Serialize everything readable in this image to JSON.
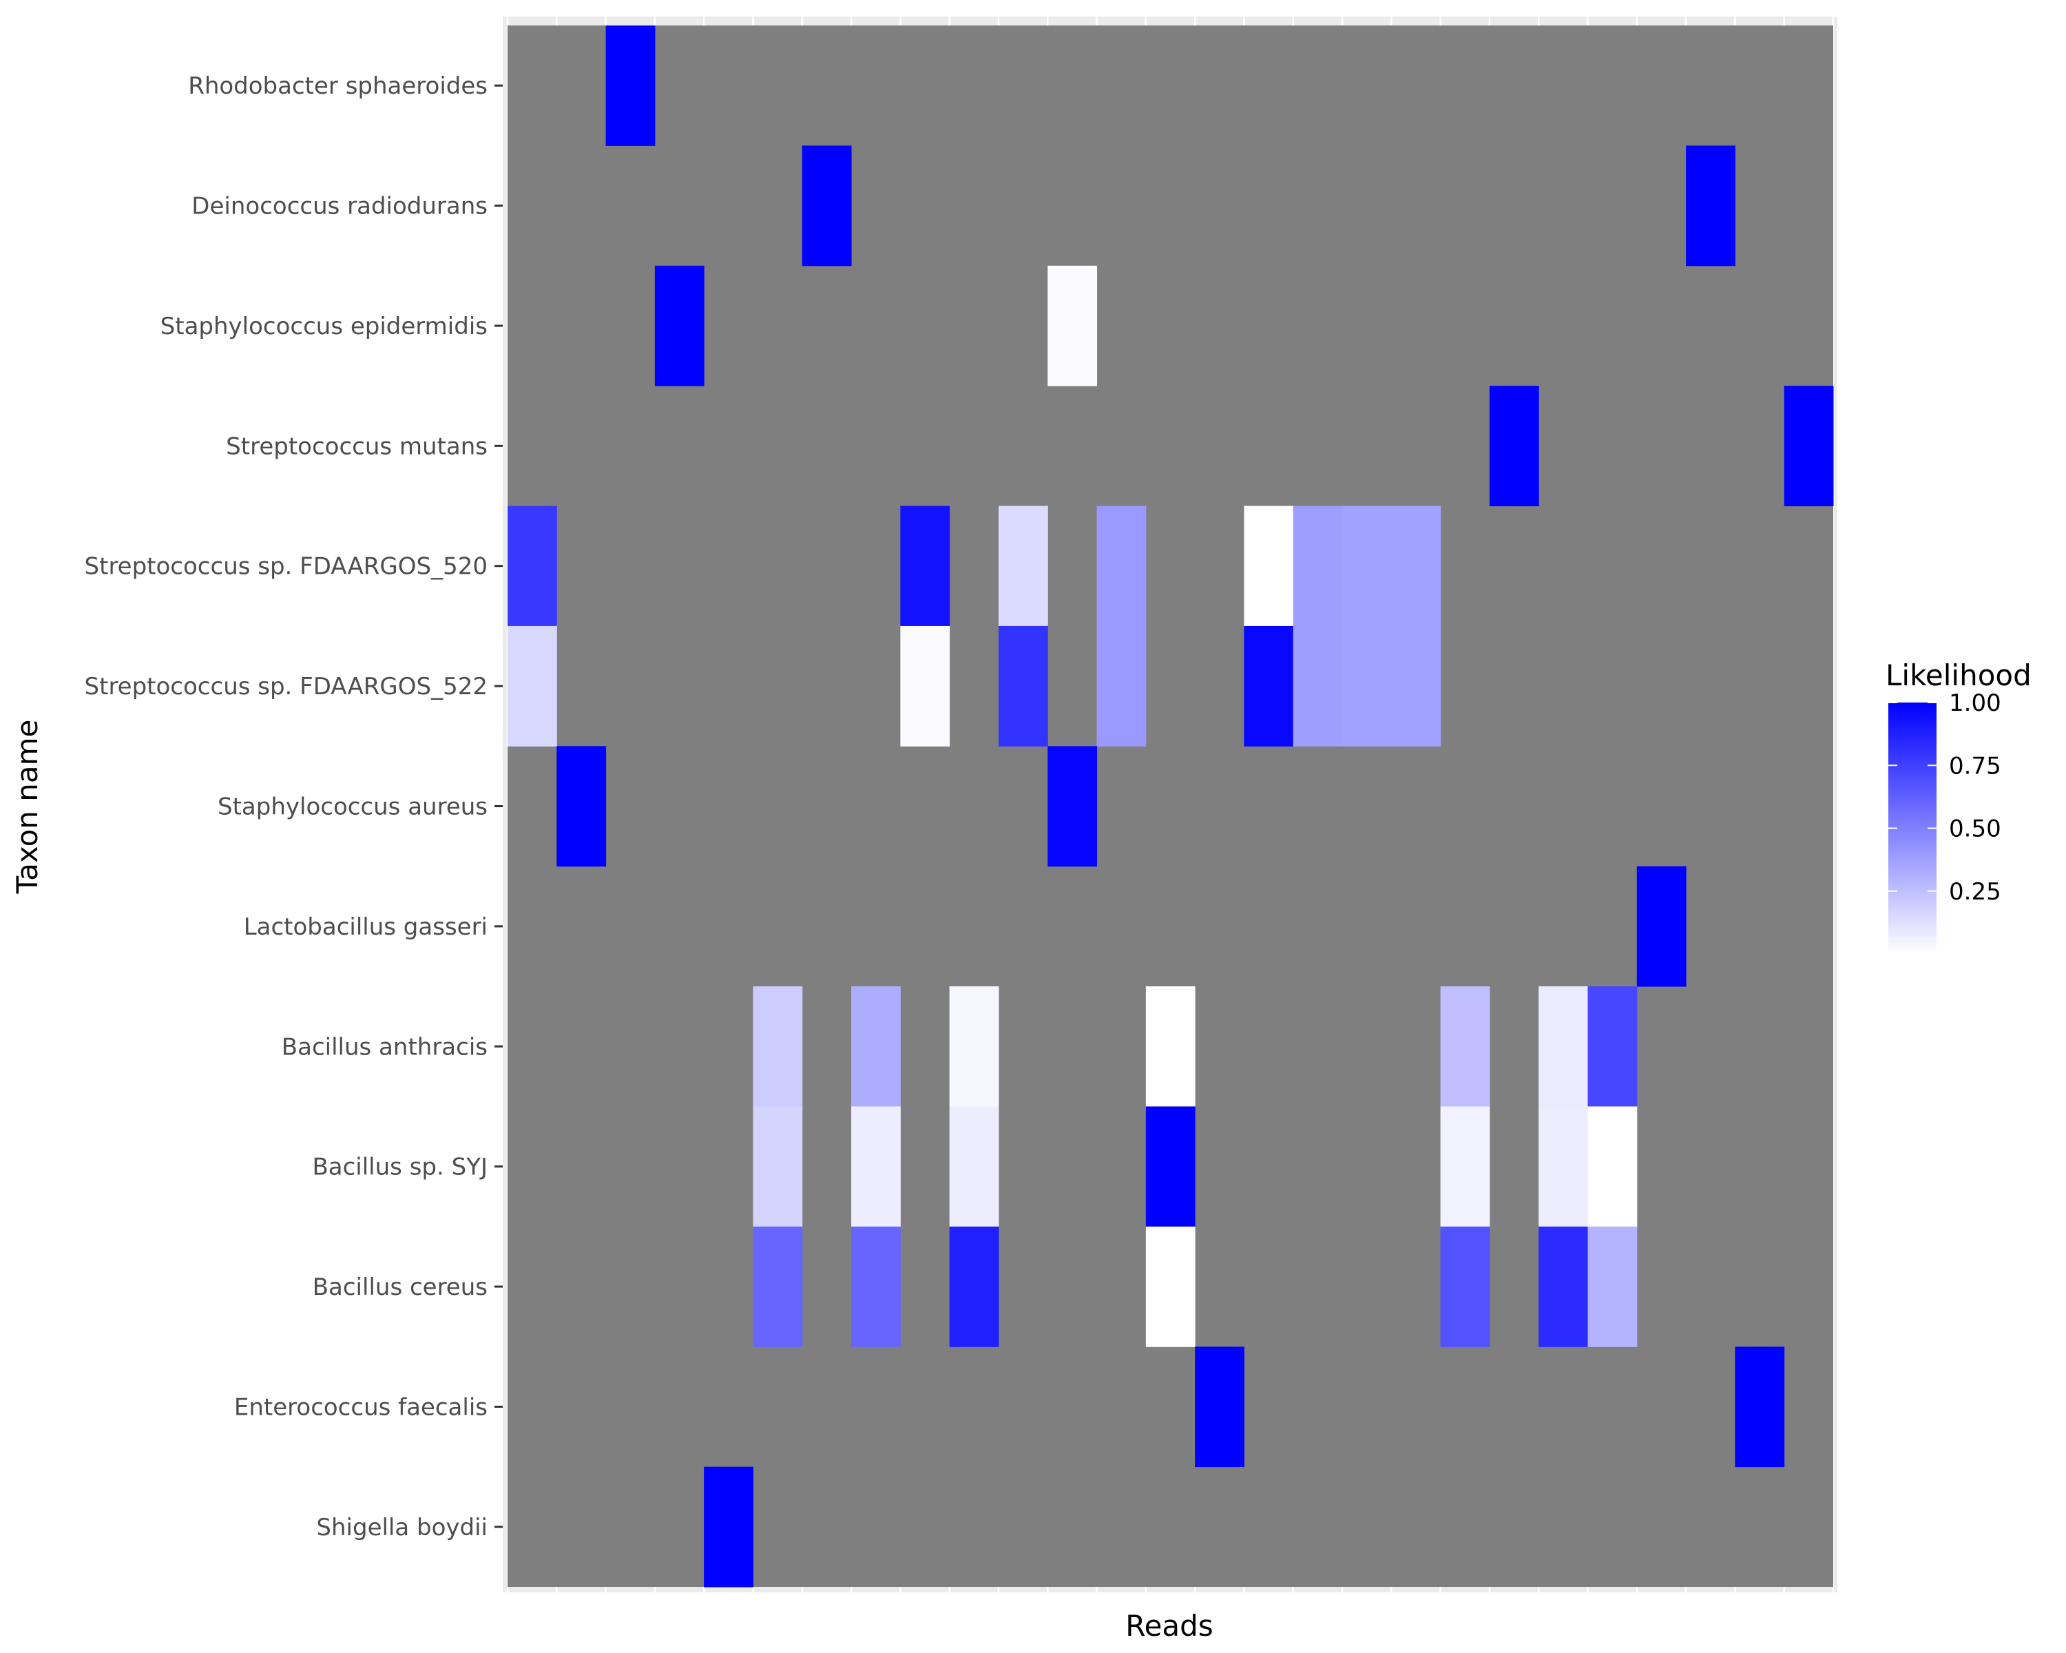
{
  "chart_data": {
    "type": "heatmap",
    "title": "",
    "xlabel": "Reads",
    "ylabel": "Taxon name",
    "x_tick_labels_shown": false,
    "grid": true,
    "legend_position": "right",
    "panel_background": "#7f7f7f",
    "colors": {
      "low": "#ffffff",
      "high": "#0000ff",
      "na": "#7f7f7f"
    },
    "n_reads": 27,
    "taxa": [
      "Rhodobacter sphaeroides",
      "Deinococcus radiodurans",
      "Staphylococcus epidermidis",
      "Streptococcus mutans",
      "Streptococcus sp. FDAARGOS_520",
      "Streptococcus sp. FDAARGOS_522",
      "Staphylococcus aureus",
      "Lactobacillus gasseri",
      "Bacillus anthracis",
      "Bacillus sp. SYJ",
      "Bacillus cereus",
      "Enterococcus faecalis",
      "Shigella boydii"
    ],
    "cells": [
      {
        "taxon": "Rhodobacter sphaeroides",
        "read": 3,
        "value": 1.0
      },
      {
        "taxon": "Deinococcus radiodurans",
        "read": 7,
        "value": 1.0
      },
      {
        "taxon": "Deinococcus radiodurans",
        "read": 25,
        "value": 1.0
      },
      {
        "taxon": "Staphylococcus epidermidis",
        "read": 4,
        "value": 1.0
      },
      {
        "taxon": "Staphylococcus epidermidis",
        "read": 12,
        "value": 0.02
      },
      {
        "taxon": "Streptococcus mutans",
        "read": 21,
        "value": 1.0
      },
      {
        "taxon": "Streptococcus mutans",
        "read": 27,
        "value": 1.0
      },
      {
        "taxon": "Streptococcus sp. FDAARGOS_520",
        "read": 1,
        "value": 0.78
      },
      {
        "taxon": "Streptococcus sp. FDAARGOS_520",
        "read": 9,
        "value": 0.93
      },
      {
        "taxon": "Streptococcus sp. FDAARGOS_520",
        "read": 11,
        "value": 0.14
      },
      {
        "taxon": "Streptococcus sp. FDAARGOS_520",
        "read": 13,
        "value": 0.4
      },
      {
        "taxon": "Streptococcus sp. FDAARGOS_520",
        "read": 16,
        "value": 0.0
      },
      {
        "taxon": "Streptococcus sp. FDAARGOS_520",
        "read": 17,
        "value": 0.38
      },
      {
        "taxon": "Streptococcus sp. FDAARGOS_520",
        "read": 18,
        "value": 0.37
      },
      {
        "taxon": "Streptococcus sp. FDAARGOS_520",
        "read": 19,
        "value": 0.37
      },
      {
        "taxon": "Streptococcus sp. FDAARGOS_522",
        "read": 1,
        "value": 0.15
      },
      {
        "taxon": "Streptococcus sp. FDAARGOS_522",
        "read": 9,
        "value": 0.02
      },
      {
        "taxon": "Streptococcus sp. FDAARGOS_522",
        "read": 11,
        "value": 0.8
      },
      {
        "taxon": "Streptococcus sp. FDAARGOS_522",
        "read": 13,
        "value": 0.4
      },
      {
        "taxon": "Streptococcus sp. FDAARGOS_522",
        "read": 16,
        "value": 0.97
      },
      {
        "taxon": "Streptococcus sp. FDAARGOS_522",
        "read": 17,
        "value": 0.38
      },
      {
        "taxon": "Streptococcus sp. FDAARGOS_522",
        "read": 18,
        "value": 0.37
      },
      {
        "taxon": "Streptococcus sp. FDAARGOS_522",
        "read": 19,
        "value": 0.37
      },
      {
        "taxon": "Staphylococcus aureus",
        "read": 2,
        "value": 1.0
      },
      {
        "taxon": "Staphylococcus aureus",
        "read": 12,
        "value": 0.98
      },
      {
        "taxon": "Lactobacillus gasseri",
        "read": 24,
        "value": 1.0
      },
      {
        "taxon": "Bacillus anthracis",
        "read": 6,
        "value": 0.2
      },
      {
        "taxon": "Bacillus anthracis",
        "read": 8,
        "value": 0.32
      },
      {
        "taxon": "Bacillus anthracis",
        "read": 10,
        "value": 0.03
      },
      {
        "taxon": "Bacillus anthracis",
        "read": 14,
        "value": 0.0
      },
      {
        "taxon": "Bacillus anthracis",
        "read": 20,
        "value": 0.25
      },
      {
        "taxon": "Bacillus anthracis",
        "read": 22,
        "value": 0.08
      },
      {
        "taxon": "Bacillus anthracis",
        "read": 23,
        "value": 0.72
      },
      {
        "taxon": "Bacillus sp. SYJ",
        "read": 6,
        "value": 0.17
      },
      {
        "taxon": "Bacillus sp. SYJ",
        "read": 8,
        "value": 0.07
      },
      {
        "taxon": "Bacillus sp. SYJ",
        "read": 10,
        "value": 0.07
      },
      {
        "taxon": "Bacillus sp. SYJ",
        "read": 14,
        "value": 1.0
      },
      {
        "taxon": "Bacillus sp. SYJ",
        "read": 20,
        "value": 0.05
      },
      {
        "taxon": "Bacillus sp. SYJ",
        "read": 22,
        "value": 0.07
      },
      {
        "taxon": "Bacillus sp. SYJ",
        "read": 23,
        "value": 0.0
      },
      {
        "taxon": "Bacillus cereus",
        "read": 6,
        "value": 0.6
      },
      {
        "taxon": "Bacillus cereus",
        "read": 8,
        "value": 0.6
      },
      {
        "taxon": "Bacillus cereus",
        "read": 10,
        "value": 0.88
      },
      {
        "taxon": "Bacillus cereus",
        "read": 14,
        "value": 0.0
      },
      {
        "taxon": "Bacillus cereus",
        "read": 20,
        "value": 0.68
      },
      {
        "taxon": "Bacillus cereus",
        "read": 22,
        "value": 0.83
      },
      {
        "taxon": "Bacillus cereus",
        "read": 23,
        "value": 0.3
      },
      {
        "taxon": "Enterococcus faecalis",
        "read": 15,
        "value": 1.0
      },
      {
        "taxon": "Enterococcus faecalis",
        "read": 26,
        "value": 1.0
      },
      {
        "taxon": "Shigella boydii",
        "read": 5,
        "value": 1.0
      }
    ],
    "legend": {
      "title": "Likelihood",
      "range": [
        0.0,
        1.0
      ],
      "ticks": [
        {
          "value": 1.0,
          "label": "1.00"
        },
        {
          "value": 0.75,
          "label": "0.75"
        },
        {
          "value": 0.5,
          "label": "0.50"
        },
        {
          "value": 0.25,
          "label": "0.25"
        }
      ]
    }
  }
}
